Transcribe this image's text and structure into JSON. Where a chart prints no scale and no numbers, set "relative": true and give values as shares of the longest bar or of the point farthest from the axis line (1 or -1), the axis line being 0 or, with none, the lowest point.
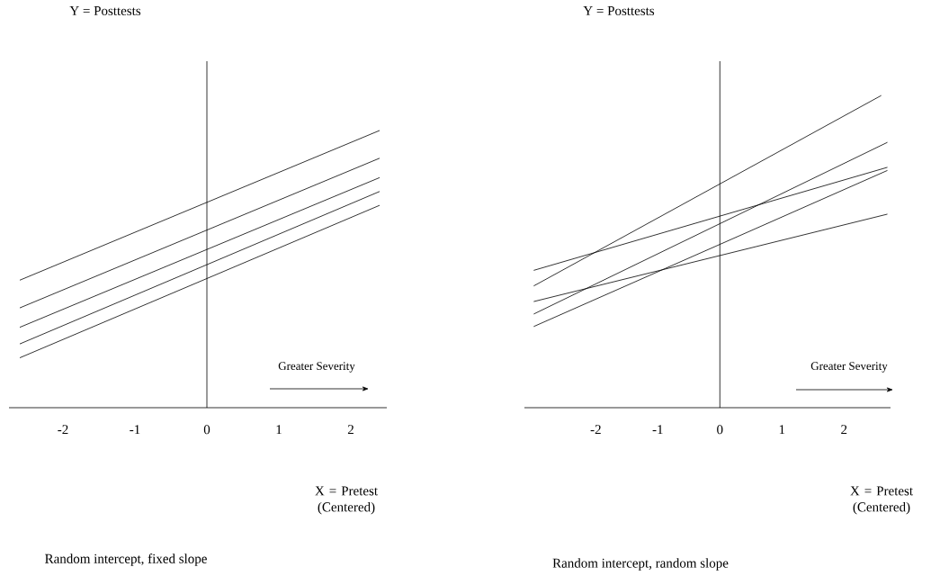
{
  "chart_data": [
    {
      "type": "line",
      "title": "Y = Posttests",
      "xlabel": "X = Pretest (Centered)",
      "relative": true,
      "xlim": [
        -2.75,
        2.5
      ],
      "xticks": [
        -2,
        -1,
        0,
        1,
        2
      ],
      "annotations": [
        "Greater Severity",
        "Random intercept, fixed slope"
      ],
      "series": [
        {
          "color": "#000000",
          "x": [
            -2.6,
            2.4
          ],
          "values": [
            0.46,
            1.0
          ]
        },
        {
          "color": "#000000",
          "x": [
            -2.6,
            2.4
          ],
          "values": [
            0.36,
            0.9
          ]
        },
        {
          "color": "#000000",
          "x": [
            -2.6,
            2.4
          ],
          "values": [
            0.29,
            0.83
          ]
        },
        {
          "color": "#000000",
          "x": [
            -2.6,
            2.4
          ],
          "values": [
            0.23,
            0.78
          ]
        },
        {
          "color": "#000000",
          "x": [
            -2.6,
            2.4
          ],
          "values": [
            0.18,
            0.73
          ]
        }
      ]
    },
    {
      "type": "line",
      "title": "Y = Posttests",
      "xlabel": "X = Pretest (Centered)",
      "relative": true,
      "xlim": [
        -3.15,
        2.75
      ],
      "xticks": [
        -2,
        -1,
        0,
        1,
        2
      ],
      "annotations": [
        "Greater Severity",
        "Random intercept, random slope"
      ],
      "series": [
        {
          "color": "#000000",
          "x": [
            -3.0,
            2.6
          ],
          "values": [
            0.39,
            1.0
          ]
        },
        {
          "color": "#000000",
          "x": [
            -3.0,
            2.7
          ],
          "values": [
            0.44,
            0.77
          ]
        },
        {
          "color": "#000000",
          "x": [
            -3.0,
            2.7
          ],
          "values": [
            0.34,
            0.62
          ]
        },
        {
          "color": "#000000",
          "x": [
            -3.0,
            2.7
          ],
          "values": [
            0.3,
            0.85
          ]
        },
        {
          "color": "#000000",
          "x": [
            -3.0,
            2.7
          ],
          "values": [
            0.26,
            0.76
          ]
        }
      ]
    }
  ]
}
